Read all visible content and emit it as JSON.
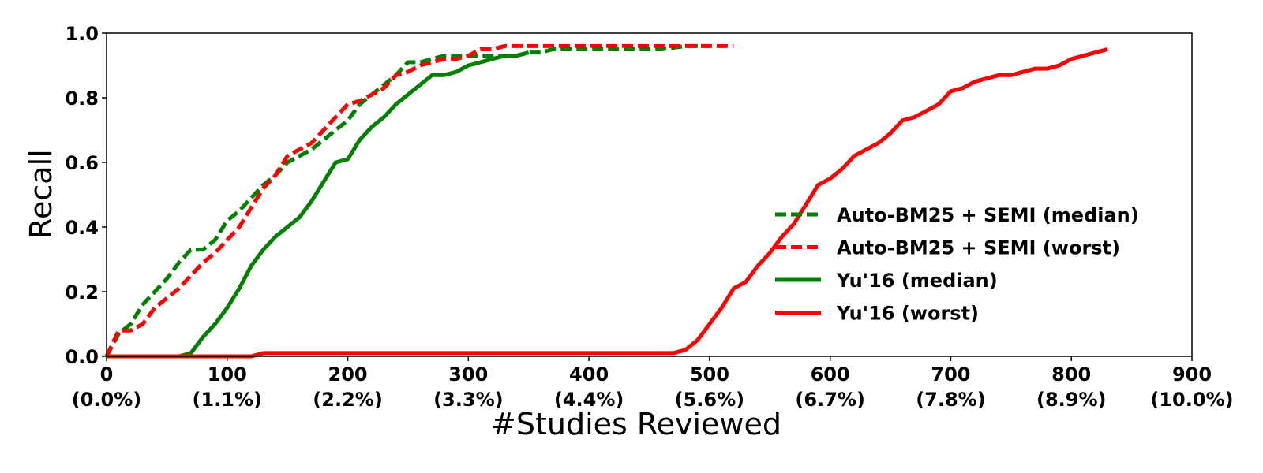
{
  "chart_data": {
    "type": "line",
    "xlabel": "#Studies Reviewed",
    "ylabel": "Recall",
    "xlim": [
      0,
      900
    ],
    "ylim": [
      0,
      1.0
    ],
    "grid": false,
    "legend_position": "center-right",
    "x_ticks": [
      {
        "value": 0,
        "label": "0",
        "sublabel": "(0.0%)"
      },
      {
        "value": 100,
        "label": "100",
        "sublabel": "(1.1%)"
      },
      {
        "value": 200,
        "label": "200",
        "sublabel": "(2.2%)"
      },
      {
        "value": 300,
        "label": "300",
        "sublabel": "(3.3%)"
      },
      {
        "value": 400,
        "label": "400",
        "sublabel": "(4.4%)"
      },
      {
        "value": 500,
        "label": "500",
        "sublabel": "(5.6%)"
      },
      {
        "value": 600,
        "label": "600",
        "sublabel": "(6.7%)"
      },
      {
        "value": 700,
        "label": "700",
        "sublabel": "(7.8%)"
      },
      {
        "value": 800,
        "label": "800",
        "sublabel": "(8.9%)"
      },
      {
        "value": 900,
        "label": "900",
        "sublabel": "(10.0%)"
      }
    ],
    "y_ticks": [
      {
        "value": 0.0,
        "label": "0.0"
      },
      {
        "value": 0.2,
        "label": "0.2"
      },
      {
        "value": 0.4,
        "label": "0.4"
      },
      {
        "value": 0.6,
        "label": "0.6"
      },
      {
        "value": 0.8,
        "label": "0.8"
      },
      {
        "value": 1.0,
        "label": "1.0"
      }
    ],
    "series": [
      {
        "name": "Auto-BM25 + SEMI (median)",
        "color": "#008000",
        "style": "dashed",
        "x": [
          0,
          10,
          20,
          30,
          40,
          50,
          60,
          70,
          80,
          90,
          100,
          110,
          120,
          130,
          140,
          150,
          160,
          170,
          180,
          190,
          200,
          210,
          220,
          230,
          240,
          250,
          260,
          270,
          280,
          290,
          300,
          310,
          320,
          330,
          340,
          350,
          360,
          370,
          380,
          390,
          400,
          420,
          440,
          460,
          480,
          500
        ],
        "y": [
          0.0,
          0.07,
          0.1,
          0.16,
          0.2,
          0.24,
          0.29,
          0.33,
          0.33,
          0.36,
          0.42,
          0.45,
          0.49,
          0.53,
          0.56,
          0.6,
          0.62,
          0.64,
          0.67,
          0.7,
          0.73,
          0.78,
          0.81,
          0.84,
          0.87,
          0.91,
          0.91,
          0.92,
          0.93,
          0.93,
          0.93,
          0.93,
          0.93,
          0.93,
          0.93,
          0.94,
          0.94,
          0.95,
          0.95,
          0.95,
          0.95,
          0.95,
          0.95,
          0.95,
          0.96,
          0.96
        ]
      },
      {
        "name": "Auto-BM25 + SEMI (worst)",
        "color": "#ff0000",
        "style": "dashed",
        "x": [
          0,
          10,
          20,
          30,
          40,
          50,
          60,
          70,
          80,
          90,
          100,
          110,
          120,
          130,
          140,
          150,
          160,
          170,
          180,
          190,
          200,
          210,
          220,
          230,
          240,
          250,
          260,
          270,
          280,
          290,
          300,
          310,
          320,
          330,
          340,
          350,
          400,
          450,
          500,
          520
        ],
        "y": [
          0.0,
          0.08,
          0.08,
          0.1,
          0.15,
          0.18,
          0.21,
          0.25,
          0.29,
          0.32,
          0.36,
          0.4,
          0.46,
          0.52,
          0.56,
          0.62,
          0.64,
          0.66,
          0.7,
          0.74,
          0.78,
          0.79,
          0.81,
          0.83,
          0.87,
          0.88,
          0.9,
          0.91,
          0.92,
          0.92,
          0.93,
          0.95,
          0.95,
          0.96,
          0.96,
          0.96,
          0.96,
          0.96,
          0.96,
          0.96
        ]
      },
      {
        "name": "Yu'16 (median)",
        "color": "#008000",
        "style": "solid",
        "x": [
          0,
          60,
          70,
          80,
          90,
          100,
          110,
          120,
          130,
          140,
          150,
          160,
          170,
          180,
          190,
          200,
          210,
          220,
          230,
          240,
          250,
          260,
          270,
          280,
          290,
          300,
          310,
          320,
          330,
          340,
          350
        ],
        "y": [
          0.0,
          0.0,
          0.01,
          0.06,
          0.1,
          0.15,
          0.21,
          0.28,
          0.33,
          0.37,
          0.4,
          0.43,
          0.48,
          0.54,
          0.6,
          0.61,
          0.67,
          0.71,
          0.74,
          0.78,
          0.81,
          0.84,
          0.87,
          0.87,
          0.88,
          0.9,
          0.91,
          0.92,
          0.93,
          0.93,
          0.94
        ]
      },
      {
        "name": "Yu'16 (worst)",
        "color": "#ff0000",
        "style": "solid",
        "x": [
          0,
          120,
          130,
          470,
          480,
          490,
          500,
          510,
          520,
          530,
          540,
          550,
          560,
          570,
          580,
          590,
          600,
          610,
          620,
          630,
          640,
          650,
          660,
          670,
          680,
          690,
          700,
          710,
          720,
          730,
          740,
          750,
          760,
          770,
          780,
          790,
          800,
          810,
          820,
          830
        ],
        "y": [
          0.0,
          0.0,
          0.01,
          0.01,
          0.02,
          0.05,
          0.1,
          0.15,
          0.21,
          0.23,
          0.28,
          0.32,
          0.37,
          0.41,
          0.47,
          0.53,
          0.55,
          0.58,
          0.62,
          0.64,
          0.66,
          0.69,
          0.73,
          0.74,
          0.76,
          0.78,
          0.82,
          0.83,
          0.85,
          0.86,
          0.87,
          0.87,
          0.88,
          0.89,
          0.89,
          0.9,
          0.92,
          0.93,
          0.94,
          0.95
        ]
      }
    ]
  }
}
